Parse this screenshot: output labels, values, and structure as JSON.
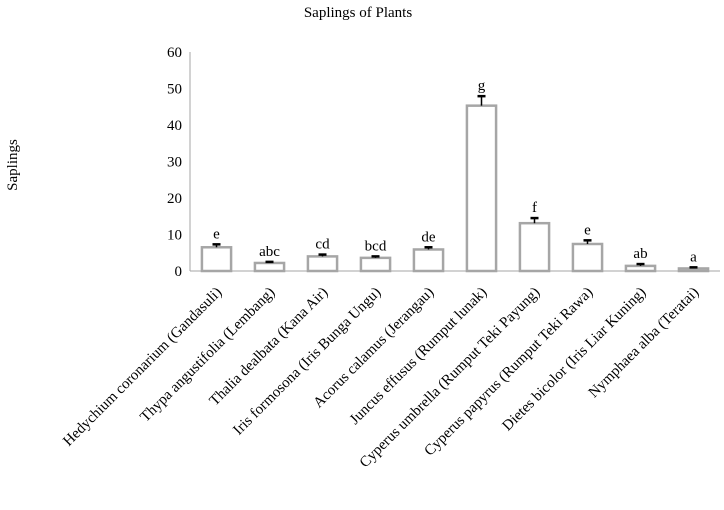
{
  "chart_data": {
    "type": "bar",
    "title": "Saplings of Plants",
    "xlabel": "",
    "ylabel": "Saplings",
    "ylim": [
      0,
      60
    ],
    "yticks": [
      "0",
      "10",
      "20",
      "30",
      "40",
      "50",
      "60"
    ],
    "grid": false,
    "legend": "none",
    "categories": [
      "Hedychium coronarium (Gandasuli)",
      "Thypa angustifolia (Lembang)",
      "Thalia dealbata (Kana Air)",
      "Iris formosona (Iris Bunga Ungu)",
      "Acorus calamus (Jerangau)",
      "Juncus effusus (Rumput lunak)",
      "Cyperus umbrella (Rumput Teki Payung)",
      "Cyperus papyrus (Rumput Teki Rawa)",
      "Dietes bicolor (Iris Liar Kuning)",
      "Nymphaea alba (Teratai)"
    ],
    "values": [
      6.5,
      2.2,
      4.0,
      3.6,
      5.9,
      45.3,
      13.1,
      7.4,
      1.4,
      0.7
    ],
    "errors": [
      0.8,
      0.3,
      0.5,
      0.4,
      0.6,
      2.6,
      1.4,
      1.0,
      0.5,
      0.3
    ],
    "significance": [
      "e",
      "abc",
      "cd",
      "bcd",
      "de",
      "g",
      "f",
      "e",
      "ab",
      "a"
    ],
    "colors": {
      "bar_fill": "#ffffff",
      "bar_stroke": "#a6a6a6",
      "axis": "#a6a6a6",
      "error": "#000000"
    }
  }
}
